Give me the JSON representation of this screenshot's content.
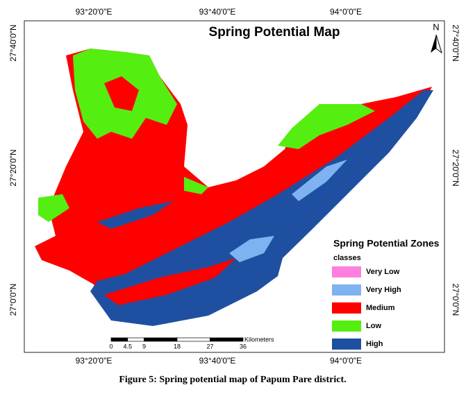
{
  "map": {
    "title": "Spring Potential Map",
    "north": "N",
    "top_labels": [
      "93°20'0\"E",
      "93°40'0\"E",
      "94°0'0\"E"
    ],
    "bottom_labels": [
      "93°20'0\"E",
      "93°40'0\"E",
      "94°0'0\"E"
    ],
    "left_labels": [
      "27°40'0\"N",
      "27°20'0\"N",
      "27°0'0\"N"
    ],
    "right_labels": [
      "27°40'0\"N",
      "27°20'0\"N",
      "27°0'0\"N"
    ],
    "legend": {
      "title": "Spring Potential Zones",
      "subtitle": "classes",
      "items": [
        {
          "label": "Very Low",
          "color": "#ff7fdf"
        },
        {
          "label": "Very High",
          "color": "#7fb2f0"
        },
        {
          "label": "Medium",
          "color": "#ff0000"
        },
        {
          "label": "Low",
          "color": "#55ee11"
        },
        {
          "label": "High",
          "color": "#1f4fa0"
        }
      ]
    },
    "scale_bar": {
      "unit": "Kilometers",
      "ticks": [
        0,
        4.5,
        9,
        18,
        27,
        36
      ]
    }
  },
  "caption": "Figure 5: Spring potential map of Papum Pare district."
}
